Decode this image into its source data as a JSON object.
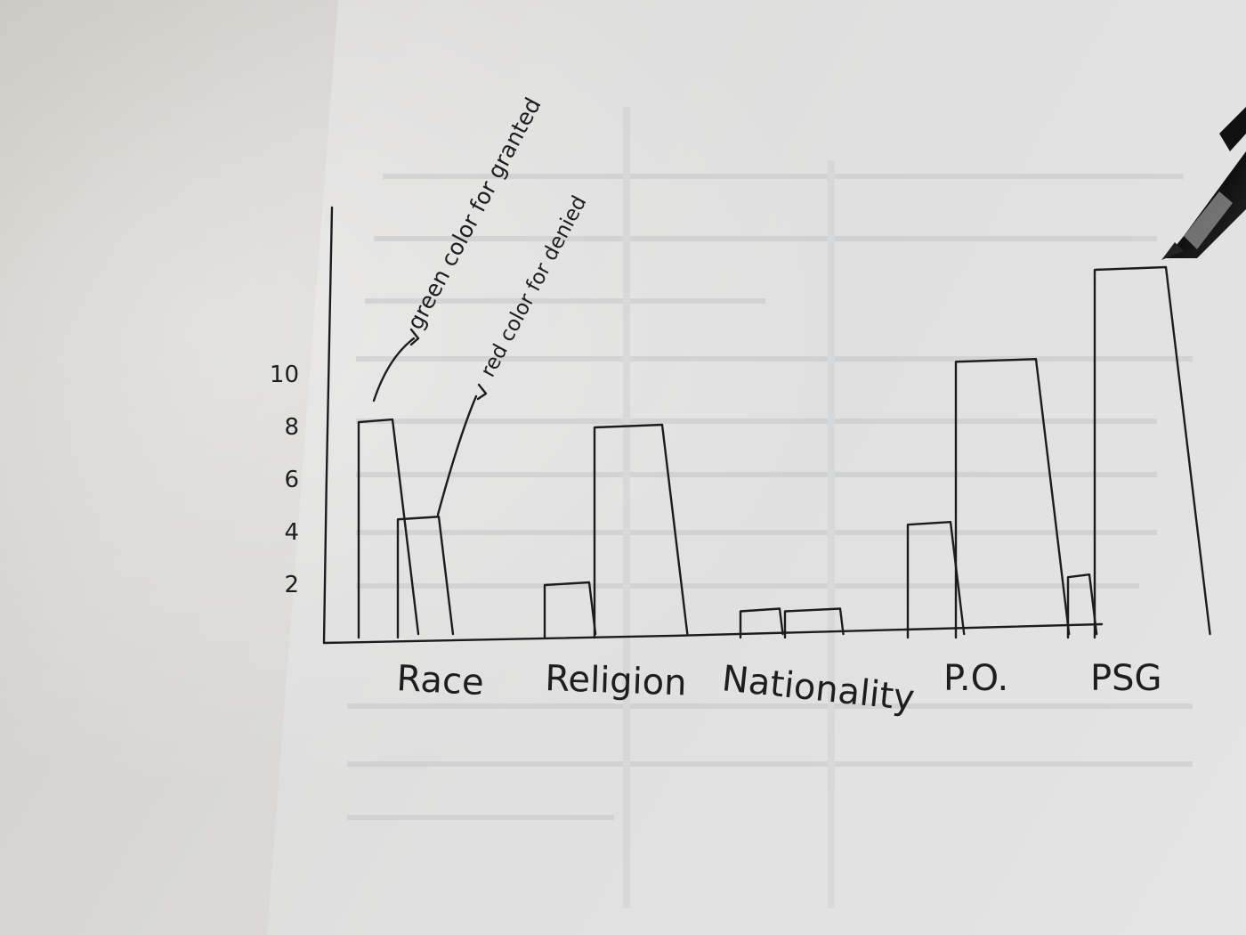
{
  "chart_data": {
    "type": "bar",
    "categories": [
      "Race",
      "Religion",
      "Nationality",
      "P.O.",
      "PSG"
    ],
    "series": [
      {
        "name": "green color = for granted",
        "values": [
          8.2,
          2.0,
          1.0,
          4.3,
          2.3
        ]
      },
      {
        "name": "red color = for denied",
        "values": [
          4.5,
          8.0,
          1.0,
          10.5,
          14.0
        ]
      }
    ],
    "yticks": [
      2,
      4,
      6,
      8,
      10
    ],
    "ylim": [
      0,
      14
    ],
    "annotations": {
      "green": "green color for granted",
      "red": "red color for denied"
    },
    "grid": false,
    "legend": "annotations above Race bars",
    "colors": {
      "ink": "#1c1c1c",
      "paper": "#dcdcdc",
      "pen_body": "#1a1a1a"
    }
  }
}
